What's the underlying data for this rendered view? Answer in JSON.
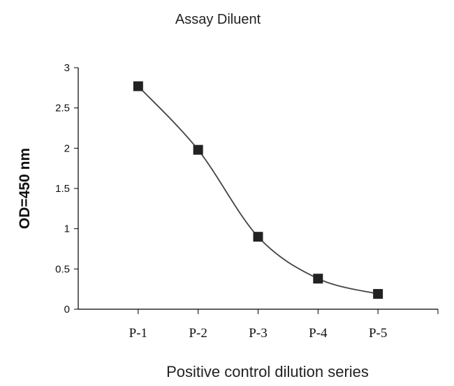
{
  "chart_data": {
    "type": "line",
    "title": "Assay Diluent",
    "xlabel": "Positive control dilution series",
    "ylabel": "OD=450 nm",
    "categories": [
      "P-1",
      "P-2",
      "P-3",
      "P-4",
      "P-5"
    ],
    "series": [
      {
        "values": [
          2.77,
          1.98,
          0.9,
          0.38,
          0.19
        ]
      }
    ],
    "ylim": [
      0,
      3
    ],
    "yticks": [
      "0",
      "0.5",
      "1",
      "1.5",
      "2",
      "2.5",
      "3"
    ],
    "grid": false,
    "marker": "square",
    "smooth": true,
    "colors": {
      "line": "#444444",
      "marker": "#222222",
      "axis": "#000000"
    }
  }
}
